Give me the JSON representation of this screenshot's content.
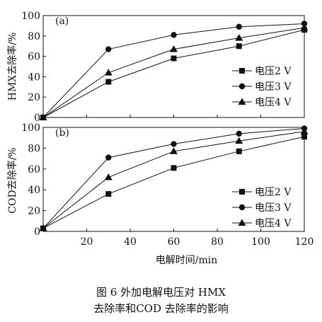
{
  "caption": {
    "line1": "图 6    外加电解电压对 HMX",
    "line2": "去除率和COD 去除率的影响"
  },
  "chart_data": [
    {
      "type": "line",
      "panel_label": "(a)",
      "ylabel": "HMX去除率/%",
      "xlabel": "",
      "xlim": [
        0,
        120
      ],
      "ylim": [
        0,
        100
      ],
      "yticks": [
        0,
        20,
        40,
        60,
        80,
        100
      ],
      "grid": false,
      "legend_position": "right",
      "x": [
        0,
        30,
        60,
        90,
        120
      ],
      "series": [
        {
          "name": "电压2 V",
          "marker": "square",
          "values": [
            0,
            35,
            58,
            70,
            86
          ]
        },
        {
          "name": "电压3 V",
          "marker": "circle",
          "values": [
            0,
            67,
            81,
            89,
            92
          ]
        },
        {
          "name": "电压4 V",
          "marker": "triangle",
          "values": [
            0,
            44,
            67,
            78,
            88
          ]
        }
      ]
    },
    {
      "type": "line",
      "panel_label": "(b)",
      "ylabel": "COD去除率/%",
      "xlabel": "电解时间/min",
      "xlim": [
        0,
        120
      ],
      "ylim": [
        0,
        100
      ],
      "yticks": [
        0,
        20,
        40,
        60,
        80,
        100
      ],
      "xticks": [
        20,
        40,
        60,
        80,
        100,
        120
      ],
      "grid": false,
      "legend_position": "bottom-right",
      "x": [
        0,
        30,
        60,
        90,
        120
      ],
      "series": [
        {
          "name": "电压2 V",
          "marker": "square",
          "values": [
            3,
            36,
            61,
            77,
            91
          ]
        },
        {
          "name": "电压3 V",
          "marker": "circle",
          "values": [
            3,
            71,
            84,
            94,
            99
          ]
        },
        {
          "name": "电压4 V",
          "marker": "triangle",
          "values": [
            3,
            52,
            77,
            87,
            96
          ]
        }
      ]
    }
  ]
}
